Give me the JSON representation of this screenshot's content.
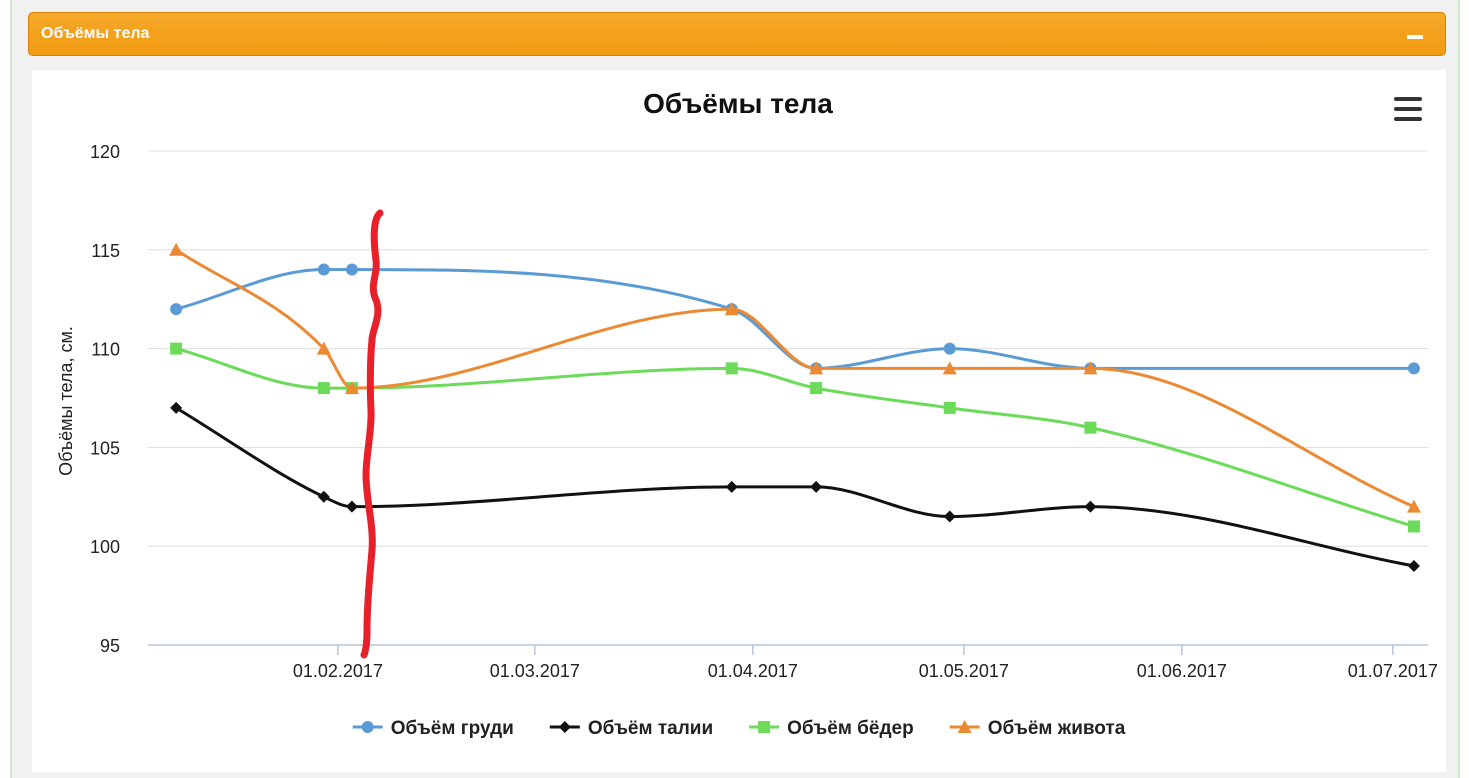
{
  "panel": {
    "title": "Объёмы тела"
  },
  "chart_data": {
    "type": "line",
    "title": "Объёмы тела",
    "ylabel": "Объёмы тела, см.",
    "xlabel": "",
    "ylim": [
      95,
      120
    ],
    "yticks": [
      95,
      100,
      105,
      110,
      115,
      120
    ],
    "xlim": [
      "2017-01-05",
      "2017-07-06"
    ],
    "xticks": [
      "01.02.2017",
      "01.03.2017",
      "01.04.2017",
      "01.05.2017",
      "01.06.2017",
      "01.07.2017"
    ],
    "grid": true,
    "legend_position": "bottom",
    "series": [
      {
        "name": "Объём груди",
        "color": "#5a9bd5",
        "marker": "circle",
        "x": [
          "2017-01-09",
          "2017-01-30",
          "2017-02-03",
          "2017-03-29",
          "2017-04-10",
          "2017-04-29",
          "2017-05-19",
          "2017-07-04"
        ],
        "y": [
          112,
          114,
          114,
          112,
          109,
          110,
          109,
          109
        ]
      },
      {
        "name": "Объём талии",
        "color": "#111111",
        "marker": "diamond",
        "x": [
          "2017-01-09",
          "2017-01-30",
          "2017-02-03",
          "2017-03-29",
          "2017-04-10",
          "2017-04-29",
          "2017-05-19",
          "2017-07-04"
        ],
        "y": [
          107,
          102.5,
          102,
          103,
          103,
          101.5,
          102,
          99
        ]
      },
      {
        "name": "Объём бёдер",
        "color": "#6bdb59",
        "marker": "square",
        "x": [
          "2017-01-09",
          "2017-01-30",
          "2017-02-03",
          "2017-03-29",
          "2017-04-10",
          "2017-04-29",
          "2017-05-19",
          "2017-07-04"
        ],
        "y": [
          110,
          108,
          108,
          109,
          108,
          107,
          106,
          101
        ]
      },
      {
        "name": "Объём живота",
        "color": "#ec8a34",
        "marker": "triangle",
        "x": [
          "2017-01-09",
          "2017-01-30",
          "2017-02-03",
          "2017-03-29",
          "2017-04-10",
          "2017-04-29",
          "2017-05-19",
          "2017-07-04"
        ],
        "y": [
          115,
          110,
          108,
          112,
          109,
          109,
          109,
          102
        ]
      }
    ]
  },
  "annotation": {
    "color": "#e8202a"
  }
}
